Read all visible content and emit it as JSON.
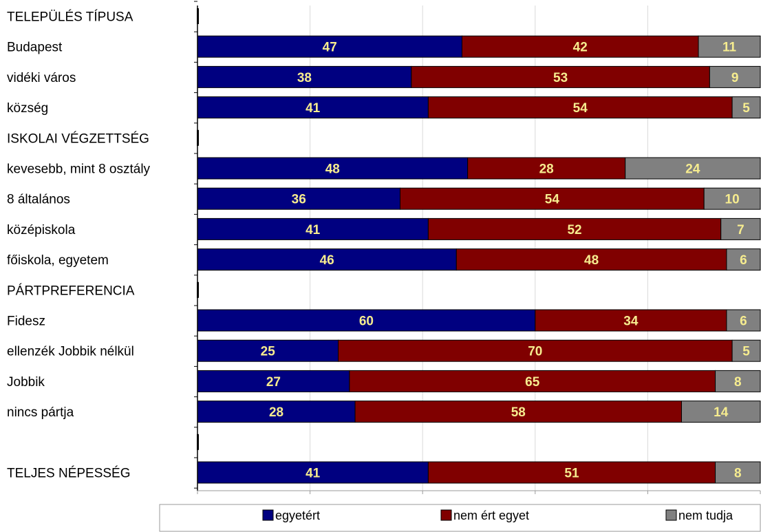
{
  "chart_data": {
    "type": "bar",
    "orientation": "horizontal",
    "stacked": true,
    "percent_stacked": true,
    "xlim": [
      0,
      100
    ],
    "grid": true,
    "legend_position": "bottom",
    "title": "",
    "xlabel": "",
    "ylabel": "",
    "categories": [
      "TELEPÜLÉS TÍPUSA",
      "Budapest",
      "vidéki város",
      "község",
      "ISKOLAI VÉGZETTSÉG",
      "kevesebb, mint 8 osztály",
      "8 általános",
      "középiskola",
      "főiskola, egyetem",
      "PÁRTPREFERENCIA",
      "Fidesz",
      "ellenzék Jobbik nélkül",
      "Jobbik",
      "nincs pártja",
      "",
      "TELJES NÉPESSÉG"
    ],
    "series": [
      {
        "name": "egyetért",
        "color": "#000080",
        "values": [
          null,
          47,
          38,
          41,
          null,
          48,
          36,
          41,
          46,
          null,
          60,
          25,
          27,
          28,
          null,
          41
        ]
      },
      {
        "name": "nem ért egyet",
        "color": "#800000",
        "values": [
          null,
          42,
          53,
          54,
          null,
          28,
          54,
          52,
          48,
          null,
          34,
          70,
          65,
          58,
          null,
          51
        ]
      },
      {
        "name": "nem tudja",
        "color": "#808080",
        "values": [
          null,
          11,
          9,
          5,
          null,
          24,
          10,
          7,
          6,
          null,
          6,
          5,
          8,
          14,
          null,
          8
        ]
      }
    ],
    "value_label_color": "#f6ec8f"
  }
}
